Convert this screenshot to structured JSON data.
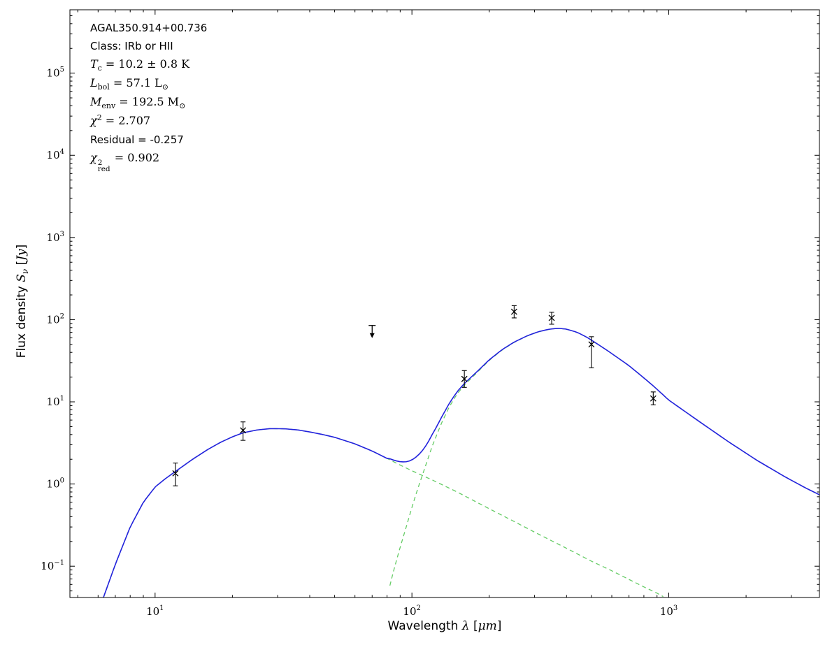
{
  "annotation": {
    "lines": [
      [
        {
          "style": "sans",
          "text": "AGAL350.914+00.736"
        }
      ],
      [
        {
          "style": "sans",
          "text": "Class: IRb or HII"
        }
      ],
      [
        {
          "style": "italic",
          "text": "T"
        },
        {
          "style": "sub",
          "text": "c"
        },
        {
          "style": "plain",
          "text": " = 10.2 ± 0.8 K"
        }
      ],
      [
        {
          "style": "italic",
          "text": "L"
        },
        {
          "style": "sub",
          "text": "bol"
        },
        {
          "style": "plain",
          "text": " = 57.1 L"
        },
        {
          "style": "sub",
          "text": "⊙"
        }
      ],
      [
        {
          "style": "italic",
          "text": "M"
        },
        {
          "style": "sub",
          "text": "env"
        },
        {
          "style": "plain",
          "text": " = 192.5 M"
        },
        {
          "style": "sub",
          "text": "⊙"
        }
      ],
      [
        {
          "style": "italic",
          "text": "χ"
        },
        {
          "style": "sup",
          "text": "2"
        },
        {
          "style": "plain",
          "text": " = 2.707"
        }
      ],
      [
        {
          "style": "sans",
          "text": "Residual = -0.257"
        }
      ],
      [
        {
          "style": "italic",
          "text": "χ"
        },
        {
          "style": "stack",
          "sup": "2",
          "sub": "red"
        },
        {
          "style": "plain",
          "text": " = 0.902"
        }
      ]
    ]
  },
  "axes": {
    "xlabel_segments": [
      {
        "style": "sans",
        "text": "Wavelength "
      },
      {
        "style": "italic",
        "text": "λ"
      },
      {
        "style": "sans",
        "text": " ["
      },
      {
        "style": "italic",
        "text": "μm"
      },
      {
        "style": "sans",
        "text": "]"
      }
    ],
    "ylabel_segments": [
      {
        "style": "sans",
        "text": "Flux density "
      },
      {
        "style": "italic",
        "text": "S"
      },
      {
        "style": "subit",
        "text": "ν"
      },
      {
        "style": "sans",
        "text": " ["
      },
      {
        "style": "italic",
        "text": "Jy"
      },
      {
        "style": "sans",
        "text": "]"
      }
    ],
    "x_tick_exponents": [
      1,
      2,
      3
    ],
    "y_tick_exponents": [
      -1,
      0,
      1,
      2,
      3,
      4,
      5
    ]
  },
  "chart_data": {
    "type": "line",
    "title": "AGAL350.914+00.736",
    "subtitle": "Class: IRb or HII",
    "xlabel": "Wavelength λ [μm]",
    "ylabel": "Flux density Sν [Jy]",
    "xscale": "log",
    "yscale": "log",
    "xlim": [
      4.66,
      3860
    ],
    "ylim": [
      0.0416,
      590000
    ],
    "grid": false,
    "background": "#ffffff",
    "colors": {
      "model_total": "#2222dd",
      "components": "#66cc66",
      "data_points": "#000000",
      "frame": "#000000"
    },
    "fit_params": {
      "class": "IRb or HII",
      "T_c_K": "10.2 ± 0.8",
      "L_bol_Lsun": 57.1,
      "M_env_Msun": 192.5,
      "chi2": 2.707,
      "residual": -0.257,
      "chi2_red": 0.902
    },
    "series": [
      {
        "name": "model-total",
        "color": "#2222dd",
        "style": "solid",
        "derived_from": [
          "warm-component",
          "cold-component"
        ]
      },
      {
        "name": "warm-component",
        "color": "#66cc66",
        "style": "dashed",
        "points": [
          [
            6.3,
            0.042
          ],
          [
            7,
            0.105
          ],
          [
            8,
            0.3
          ],
          [
            9,
            0.6
          ],
          [
            10,
            0.92
          ],
          [
            11,
            1.17
          ],
          [
            12,
            1.42
          ],
          [
            14,
            2.0
          ],
          [
            16,
            2.62
          ],
          [
            18,
            3.22
          ],
          [
            20,
            3.75
          ],
          [
            22,
            4.2
          ],
          [
            25,
            4.55
          ],
          [
            28,
            4.72
          ],
          [
            32,
            4.7
          ],
          [
            36,
            4.55
          ],
          [
            40,
            4.3
          ],
          [
            45,
            4.0
          ],
          [
            50,
            3.7
          ],
          [
            60,
            3.08
          ],
          [
            70,
            2.52
          ],
          [
            80,
            2.05
          ],
          [
            90,
            1.7
          ],
          [
            100,
            1.45
          ],
          [
            120,
            1.12
          ],
          [
            150,
            0.8
          ],
          [
            200,
            0.5
          ],
          [
            250,
            0.35
          ],
          [
            300,
            0.26
          ],
          [
            400,
            0.165
          ],
          [
            500,
            0.115
          ],
          [
            600,
            0.088
          ],
          [
            700,
            0.069
          ],
          [
            800,
            0.056
          ],
          [
            900,
            0.047
          ],
          [
            960,
            0.042
          ]
        ]
      },
      {
        "name": "cold-component",
        "color": "#66cc66",
        "style": "dashed",
        "points": [
          [
            80,
            0.042
          ],
          [
            85,
            0.09
          ],
          [
            90,
            0.17
          ],
          [
            95,
            0.3
          ],
          [
            100,
            0.52
          ],
          [
            105,
            0.85
          ],
          [
            110,
            1.3
          ],
          [
            120,
            2.9
          ],
          [
            130,
            5.4
          ],
          [
            140,
            8.8
          ],
          [
            150,
            12.5
          ],
          [
            160,
            16.0
          ],
          [
            180,
            23.0
          ],
          [
            200,
            32.0
          ],
          [
            225,
            43.0
          ],
          [
            250,
            53.0
          ],
          [
            280,
            63.0
          ],
          [
            310,
            71.0
          ],
          [
            340,
            76.0
          ],
          [
            370,
            78.5
          ],
          [
            400,
            76.5
          ],
          [
            440,
            70.0
          ],
          [
            480,
            61.0
          ],
          [
            530,
            50.0
          ],
          [
            580,
            41.5
          ],
          [
            640,
            33.5
          ],
          [
            700,
            27.5
          ],
          [
            800,
            19.5
          ],
          [
            870,
            15.6
          ],
          [
            1000,
            10.5
          ],
          [
            1300,
            5.9
          ],
          [
            1700,
            3.3
          ],
          [
            2200,
            1.95
          ],
          [
            2800,
            1.25
          ],
          [
            3400,
            0.9
          ],
          [
            3860,
            0.74
          ]
        ]
      }
    ],
    "data_points": [
      {
        "wavelength_um": 12,
        "flux_jy": 1.35,
        "flux_lo_jy": 0.95,
        "flux_hi_jy": 1.8,
        "upper_limit": false
      },
      {
        "wavelength_um": 22,
        "flux_jy": 4.5,
        "flux_lo_jy": 3.4,
        "flux_hi_jy": 5.7,
        "upper_limit": false
      },
      {
        "wavelength_um": 70,
        "flux_jy": 85,
        "upper_limit": true
      },
      {
        "wavelength_um": 160,
        "flux_jy": 19,
        "flux_lo_jy": 15,
        "flux_hi_jy": 24,
        "upper_limit": false
      },
      {
        "wavelength_um": 250,
        "flux_jy": 125,
        "flux_lo_jy": 105,
        "flux_hi_jy": 148,
        "upper_limit": false
      },
      {
        "wavelength_um": 350,
        "flux_jy": 105,
        "flux_lo_jy": 88,
        "flux_hi_jy": 123,
        "upper_limit": false
      },
      {
        "wavelength_um": 500,
        "flux_jy": 50,
        "flux_lo_jy": 26,
        "flux_hi_jy": 62,
        "upper_limit": false
      },
      {
        "wavelength_um": 870,
        "flux_jy": 11,
        "flux_lo_jy": 9.2,
        "flux_hi_jy": 13.2,
        "upper_limit": false
      }
    ]
  }
}
